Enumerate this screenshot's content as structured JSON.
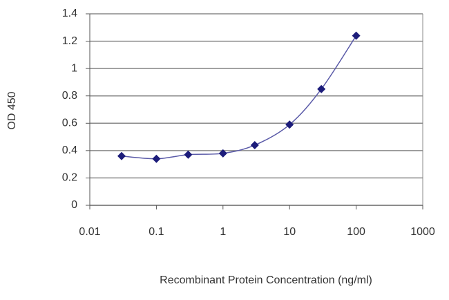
{
  "chart_data": {
    "type": "scatter",
    "xlabel": "Recombinant Protein Concentration (ng/ml)",
    "ylabel": "OD 450",
    "x": [
      0.03,
      0.1,
      0.3,
      1,
      3,
      10,
      30,
      100
    ],
    "series": [
      {
        "color": "#1c1c7a",
        "values": [
          0.36,
          0.34,
          0.37,
          0.38,
          0.44,
          0.59,
          0.85,
          1.24
        ]
      }
    ],
    "xscale": "log",
    "xlim": [
      0.01,
      1000
    ],
    "xticks": [
      0.01,
      0.1,
      1,
      10,
      100,
      1000
    ],
    "ylim": [
      0,
      1.4
    ],
    "yticks": [
      0,
      0.2,
      0.4,
      0.6,
      0.8,
      1,
      1.2,
      1.4
    ],
    "grid": true
  }
}
